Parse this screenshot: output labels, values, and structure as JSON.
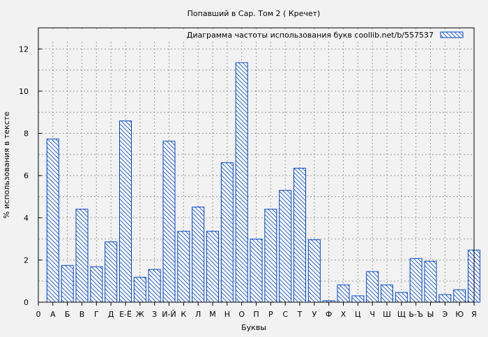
{
  "chart_data": {
    "type": "bar",
    "title": "Попавший в Сар. Том 2 ( Кречет)",
    "xlabel": "Буквы",
    "ylabel": "% использования в тексте",
    "legend": {
      "label": "Диаграмма частоты использования букв  coollib.net/b/557537",
      "position": "top-right"
    },
    "ylim": [
      0,
      13
    ],
    "yticks": [
      0,
      2,
      4,
      6,
      8,
      10,
      12
    ],
    "grid": true,
    "bar_color": "#0044cc",
    "fill": "diagonal-hatch",
    "categories": [
      "0",
      "А",
      "Б",
      "В",
      "Г",
      "Д",
      "Е-Ё",
      "Ж",
      "З",
      "И-Й",
      "К",
      "Л",
      "М",
      "Н",
      "О",
      "П",
      "Р",
      "С",
      "Т",
      "У",
      "Ф",
      "Х",
      "Ц",
      "Ч",
      "Ш",
      "Щ",
      "Ь-Ъ",
      "Ы",
      "Э",
      "Ю",
      "Я"
    ],
    "values": [
      0,
      7.73,
      1.74,
      4.41,
      1.68,
      2.86,
      8.59,
      1.18,
      1.55,
      7.63,
      3.36,
      4.51,
      3.36,
      6.61,
      11.35,
      2.99,
      4.41,
      5.3,
      6.35,
      2.96,
      0.07,
      0.82,
      0.3,
      1.45,
      0.82,
      0.46,
      2.07,
      1.94,
      0.36,
      0.59,
      2.47
    ]
  }
}
